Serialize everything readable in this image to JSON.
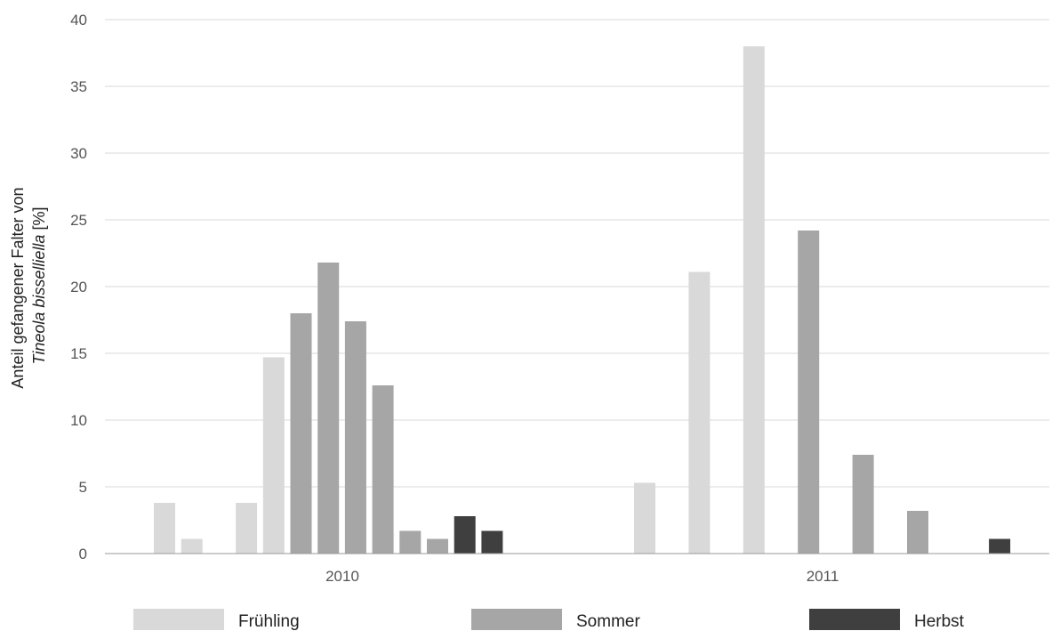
{
  "chart_data": {
    "type": "bar",
    "ylabel_line1": "Anteil gefangener Falter von",
    "ylabel_species": "Tineola bisselliella",
    "ylabel_unit": " [%]",
    "ylim": [
      0,
      40
    ],
    "yticks": [
      0,
      5,
      10,
      15,
      20,
      25,
      30,
      35,
      40
    ],
    "grid": true,
    "legend_position": "bottom",
    "categories": [
      "2010",
      "2011"
    ],
    "colors": {
      "Frühling": "#d9d9d9",
      "Sommer": "#a6a6a6",
      "Herbst": "#3f3f3f"
    },
    "legend": [
      "Frühling",
      "Sommer",
      "Herbst"
    ],
    "bars": [
      {
        "group": "2010",
        "season": "Frühling",
        "value": 3.8
      },
      {
        "group": "2010",
        "season": "Frühling",
        "value": 1.1
      },
      {
        "group": "2010",
        "season": "Frühling",
        "value": 0
      },
      {
        "group": "2010",
        "season": "Frühling",
        "value": 3.8
      },
      {
        "group": "2010",
        "season": "Frühling",
        "value": 14.7
      },
      {
        "group": "2010",
        "season": "Sommer",
        "value": 18.0
      },
      {
        "group": "2010",
        "season": "Sommer",
        "value": 21.8
      },
      {
        "group": "2010",
        "season": "Sommer",
        "value": 17.4
      },
      {
        "group": "2010",
        "season": "Sommer",
        "value": 12.6
      },
      {
        "group": "2010",
        "season": "Sommer",
        "value": 1.7
      },
      {
        "group": "2010",
        "season": "Sommer",
        "value": 1.1
      },
      {
        "group": "2010",
        "season": "Herbst",
        "value": 2.8
      },
      {
        "group": "2010",
        "season": "Herbst",
        "value": 1.7
      },
      {
        "group": "2011",
        "season": "Frühling",
        "value": 5.3
      },
      {
        "group": "2011",
        "season": "Frühling",
        "value": 0
      },
      {
        "group": "2011",
        "season": "Frühling",
        "value": 21.1
      },
      {
        "group": "2011",
        "season": "Frühling",
        "value": 0
      },
      {
        "group": "2011",
        "season": "Frühling",
        "value": 38.0
      },
      {
        "group": "2011",
        "season": "Sommer",
        "value": 0
      },
      {
        "group": "2011",
        "season": "Sommer",
        "value": 24.2
      },
      {
        "group": "2011",
        "season": "Sommer",
        "value": 0
      },
      {
        "group": "2011",
        "season": "Sommer",
        "value": 7.4
      },
      {
        "group": "2011",
        "season": "Sommer",
        "value": 0
      },
      {
        "group": "2011",
        "season": "Sommer",
        "value": 3.2
      },
      {
        "group": "2011",
        "season": "Sommer",
        "value": 0
      },
      {
        "group": "2011",
        "season": "Herbst",
        "value": 0
      },
      {
        "group": "2011",
        "season": "Herbst",
        "value": 1.1
      }
    ]
  }
}
